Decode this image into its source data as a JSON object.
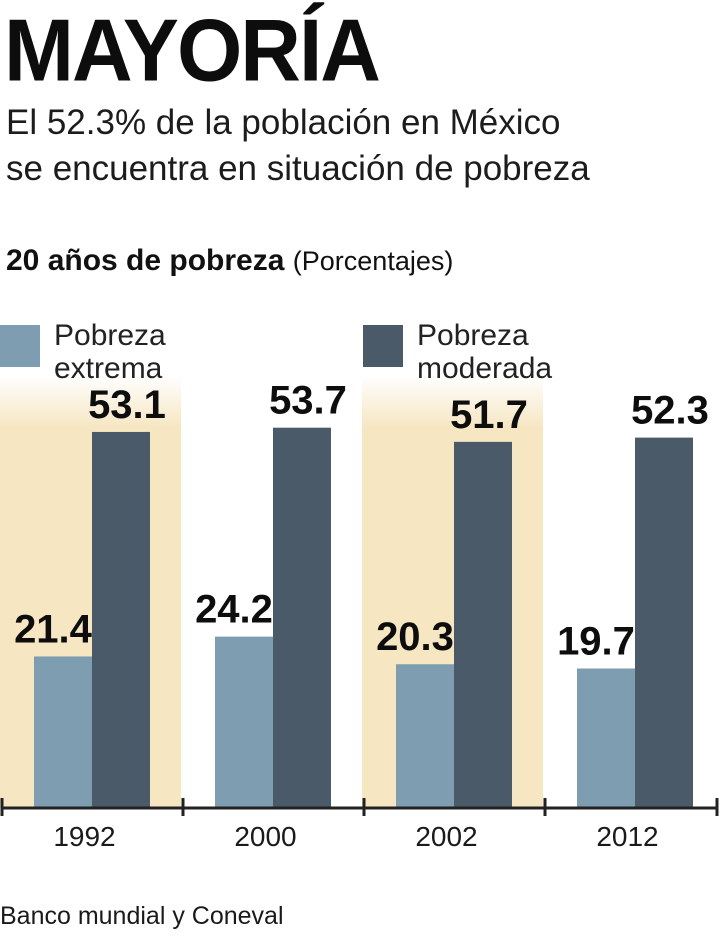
{
  "title": "MAYORÍA",
  "subtitle": {
    "line1": "El 52.3% de la población en México",
    "line2": "se encuentra en situación de pobreza"
  },
  "chart_heading": {
    "bold": "20 años de pobreza",
    "unit": "(Porcentajes)"
  },
  "legend": {
    "extreme": {
      "line1": "Pobreza",
      "line2": "extrema"
    },
    "moderate": {
      "line1": "Pobreza",
      "line2": "moderada"
    }
  },
  "colors": {
    "extreme": "#7e9db1",
    "moderate": "#4a5a69",
    "band": "#f6e6c2",
    "axis": "#222222"
  },
  "chart_data": {
    "type": "bar",
    "title": "20 años de pobreza",
    "ylabel": "Porcentajes",
    "xlabel": "",
    "categories": [
      "1992",
      "2000",
      "2002",
      "2012"
    ],
    "series": [
      {
        "name": "Pobreza extrema",
        "values": [
          21.4,
          24.2,
          20.3,
          19.7
        ]
      },
      {
        "name": "Pobreza moderada",
        "values": [
          53.1,
          53.7,
          51.7,
          52.3
        ]
      }
    ],
    "ylim": [
      0,
      60
    ],
    "grid": false,
    "legend": "top"
  },
  "source": "Banco mundial y Coneval"
}
